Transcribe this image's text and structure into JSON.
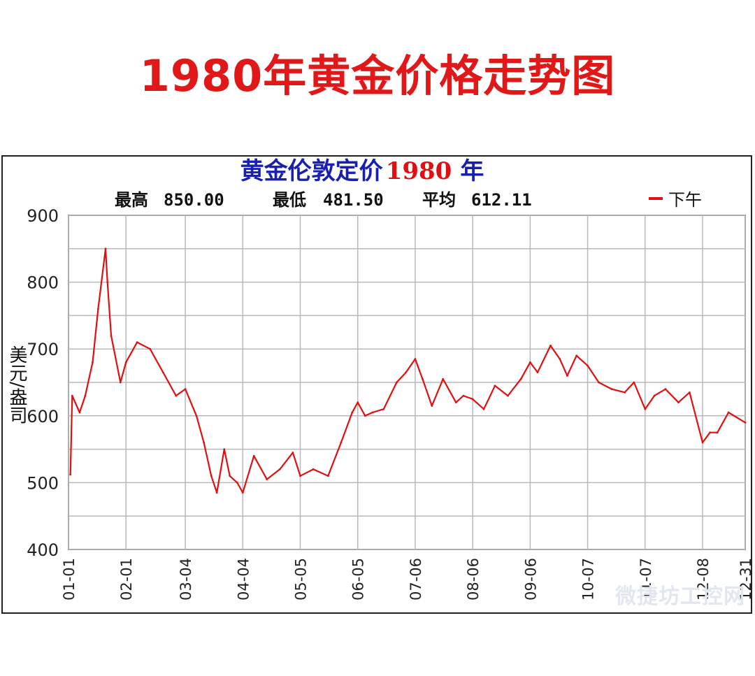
{
  "page": {
    "title": "1980年黄金价格走势图"
  },
  "chart_data": {
    "type": "line",
    "title_prefix": "黄金伦敦定价",
    "title_year": "1980",
    "title_suffix": "年",
    "stats": {
      "max_label": "最高",
      "max_value": "850.00",
      "min_label": "最低",
      "min_value": "481.50",
      "avg_label": "平均",
      "avg_value": "612.11"
    },
    "legend": [
      {
        "name": "下午",
        "color": "#e01010"
      }
    ],
    "legend_position": "top-right",
    "ylabel": "美元/盎司",
    "ylim": [
      400,
      900
    ],
    "yticks": [
      900,
      800,
      700,
      600,
      500,
      400
    ],
    "xticks": [
      "01-01",
      "02-01",
      "03-04",
      "04-04",
      "05-05",
      "06-05",
      "07-06",
      "08-06",
      "09-06",
      "10-07",
      "11-07",
      "12-08",
      "12-31"
    ],
    "grid": true,
    "colors": {
      "line": "#e01010",
      "title_blue": "#1820b0",
      "title_red": "#e01010",
      "grid": "#b8b8b8",
      "frame": "#222222"
    },
    "series": [
      {
        "name": "下午",
        "x": [
          "01-02",
          "01-03",
          "01-07",
          "01-10",
          "01-14",
          "01-17",
          "01-21",
          "01-22",
          "01-24",
          "01-29",
          "02-01",
          "02-07",
          "02-14",
          "02-21",
          "02-28",
          "03-04",
          "03-10",
          "03-14",
          "03-18",
          "03-21",
          "03-25",
          "03-28",
          "04-01",
          "04-04",
          "04-10",
          "04-17",
          "04-24",
          "05-01",
          "05-05",
          "05-12",
          "05-20",
          "05-27",
          "06-02",
          "06-05",
          "06-09",
          "06-13",
          "06-19",
          "06-26",
          "07-01",
          "07-06",
          "07-10",
          "07-15",
          "07-21",
          "07-28",
          "08-01",
          "08-06",
          "08-12",
          "08-18",
          "08-25",
          "09-01",
          "09-06",
          "09-10",
          "09-17",
          "09-22",
          "09-26",
          "10-01",
          "10-07",
          "10-13",
          "10-20",
          "10-27",
          "11-01",
          "11-07",
          "11-12",
          "11-18",
          "11-25",
          "12-01",
          "12-08",
          "12-12",
          "12-16",
          "12-22",
          "12-31"
        ],
        "y": [
          512,
          630,
          605,
          630,
          680,
          760,
          850,
          800,
          720,
          650,
          680,
          710,
          700,
          665,
          630,
          640,
          600,
          560,
          510,
          485,
          550,
          510,
          500,
          485,
          540,
          505,
          520,
          545,
          510,
          520,
          510,
          560,
          605,
          620,
          600,
          605,
          610,
          650,
          665,
          685,
          655,
          615,
          655,
          620,
          630,
          625,
          610,
          645,
          630,
          655,
          680,
          665,
          705,
          685,
          660,
          690,
          675,
          650,
          640,
          635,
          650,
          610,
          630,
          640,
          620,
          635,
          560,
          575,
          575,
          605,
          590
        ]
      }
    ]
  },
  "watermark": "微捷坊工控网"
}
